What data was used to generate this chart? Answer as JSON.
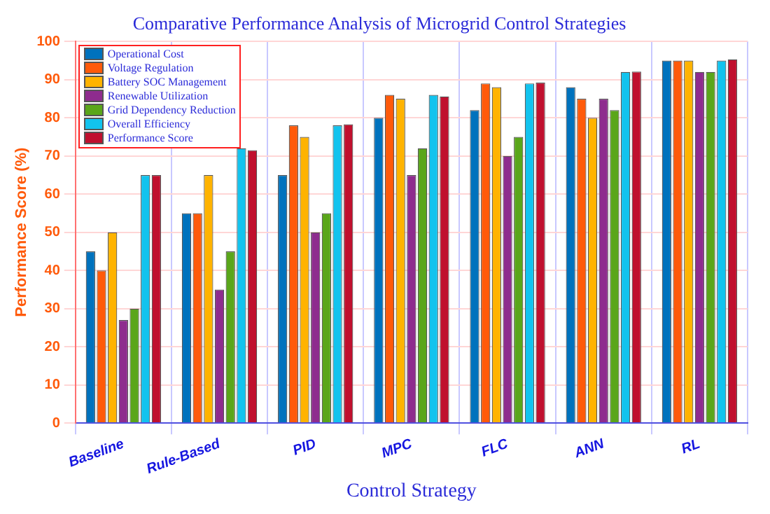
{
  "chart_data": {
    "type": "bar",
    "title": "Comparative Performance Analysis of Microgrid Control Strategies",
    "xlabel": "Control Strategy",
    "ylabel": "Performance Score (%)",
    "categories": [
      "Baseline",
      "Rule-Based",
      "PID",
      "MPC",
      "FLC",
      "ANN",
      "RL"
    ],
    "series": [
      {
        "name": "Operational Cost",
        "color": "#0072bd",
        "values": [
          45,
          55,
          65,
          80,
          82,
          88,
          95
        ]
      },
      {
        "name": "Voltage Regulation",
        "color": "#ff5a0a",
        "values": [
          40,
          55,
          78,
          86,
          89,
          85,
          95
        ]
      },
      {
        "name": "Battery SOC Management",
        "color": "#ffb300",
        "values": [
          50,
          65,
          75,
          85,
          88,
          80,
          95
        ]
      },
      {
        "name": "Renewable Utilization",
        "color": "#8e2c8e",
        "values": [
          27,
          35,
          50,
          65,
          70,
          85,
          92
        ]
      },
      {
        "name": "Grid Dependency Reduction",
        "color": "#5aa61a",
        "values": [
          30,
          45,
          55,
          72,
          75,
          82,
          92
        ]
      },
      {
        "name": "Overall Efficiency",
        "color": "#12c3ee",
        "values": [
          65,
          72,
          78,
          86,
          89,
          92,
          95
        ]
      },
      {
        "name": "Performance Score",
        "color": "#c0102e",
        "values": [
          65,
          71.5,
          78.3,
          85.6,
          89.2,
          92.1,
          95.3
        ]
      }
    ],
    "ylim": [
      0,
      100
    ],
    "yticks": [
      0,
      10,
      20,
      30,
      40,
      50,
      60,
      70,
      80,
      90,
      100
    ],
    "grid": true,
    "legend": "top left"
  }
}
